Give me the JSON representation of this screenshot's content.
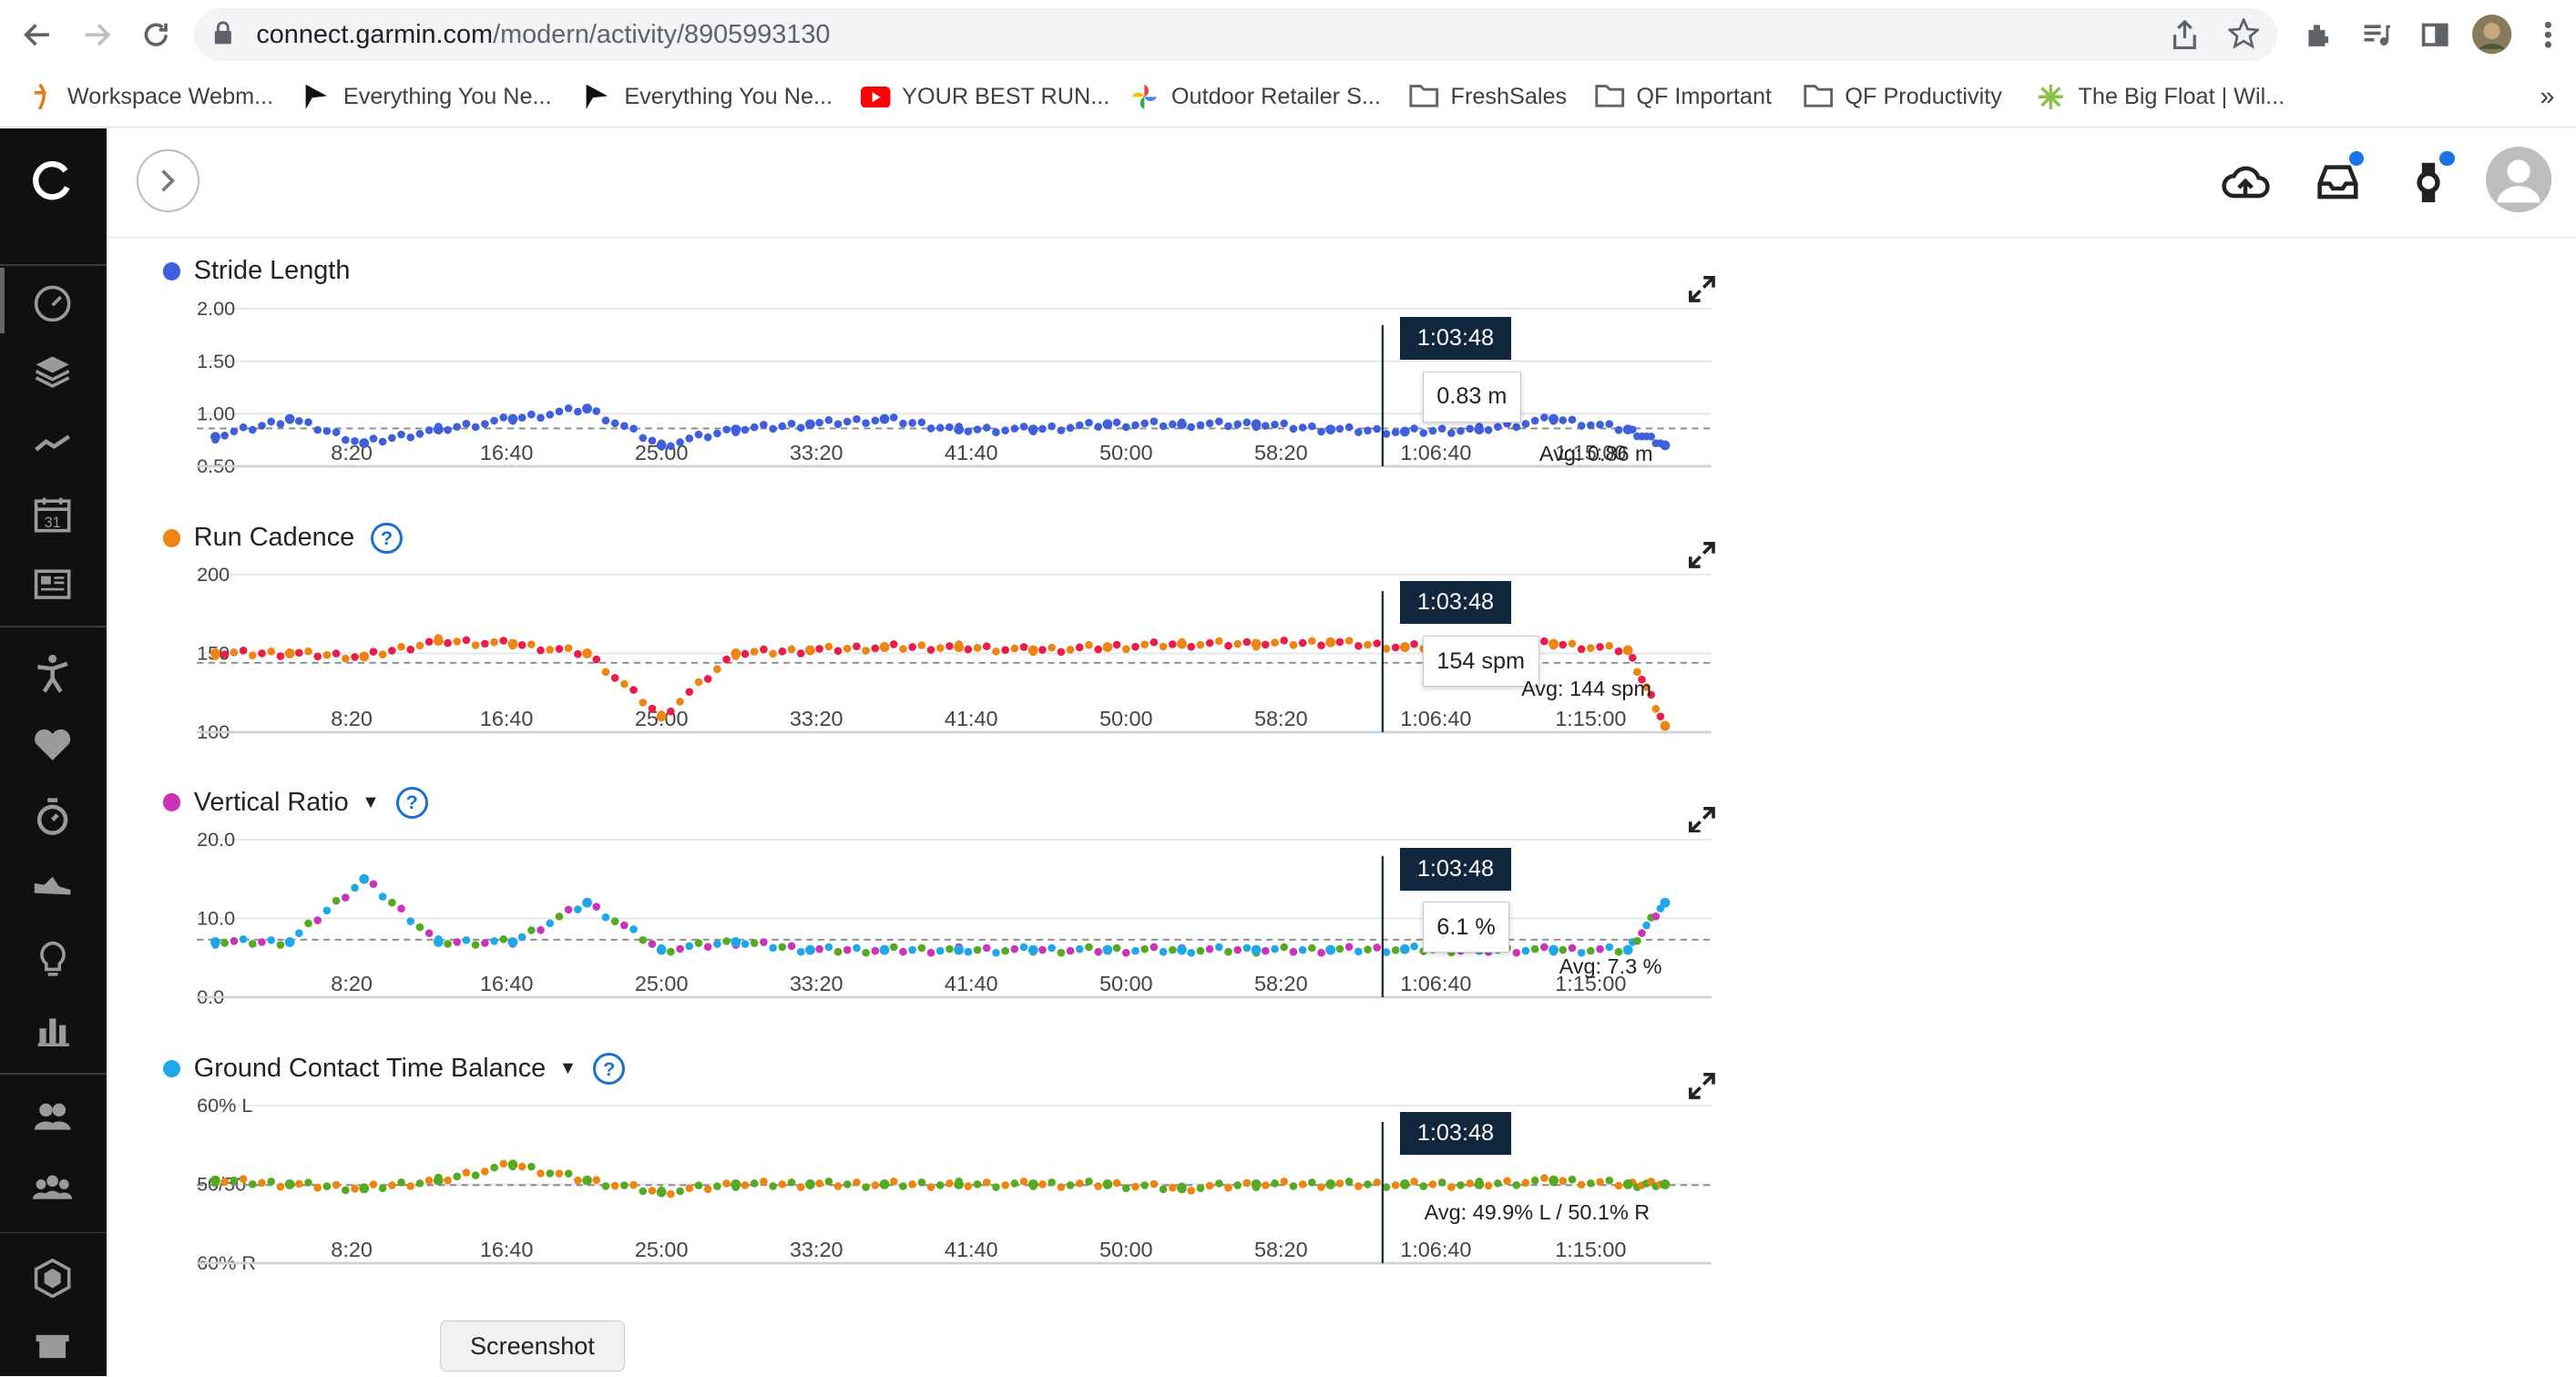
{
  "browser": {
    "url_host": "connect.garmin.com",
    "url_path": "/modern/activity/8905993130",
    "bookmarks": [
      {
        "label": "Workspace Webm...",
        "icon": "garmin-bookmark-icon",
        "color": "#e37d20"
      },
      {
        "label": "Everything You Ne...",
        "icon": "flag-bookmark-icon",
        "color": "#111111"
      },
      {
        "label": "Everything You Ne...",
        "icon": "flag-bookmark-icon",
        "color": "#111111"
      },
      {
        "label": "YOUR BEST RUN...",
        "icon": "youtube-icon",
        "color": "#ff0000"
      },
      {
        "label": "Outdoor Retailer S...",
        "icon": "pinwheel-icon",
        "color": "#4285f4"
      },
      {
        "label": "FreshSales",
        "icon": "folder-icon",
        "color": "#5f6368"
      },
      {
        "label": "QF Important",
        "icon": "folder-icon",
        "color": "#5f6368"
      },
      {
        "label": "QF Productivity",
        "icon": "folder-icon",
        "color": "#5f6368"
      },
      {
        "label": "The Big Float | Wil...",
        "icon": "flower-icon",
        "color": "#8bc34a"
      }
    ],
    "more_bookmarks": "»"
  },
  "leftnav": {
    "items": [
      "dashboard-icon",
      "layers-icon",
      "trend-icon",
      "calendar-icon",
      "news-icon",
      "activity-run-icon",
      "heart-icon",
      "stopwatch-icon",
      "shoe-icon",
      "lightbulb-icon",
      "bar-chart-icon",
      "group-icon",
      "community-icon",
      "hexagon-icon",
      "gift-icon"
    ],
    "calendar_day": "31"
  },
  "header": {
    "icons": [
      "upload-cloud-icon",
      "inbox-icon",
      "watch-icon",
      "user-avatar"
    ]
  },
  "charts": [
    {
      "title": "Stride Length",
      "dot_color": "#3f5fdc",
      "has_help": false,
      "has_dropdown": false,
      "y_ticks": [
        "2.00",
        "1.50",
        "1.00",
        "0.50"
      ],
      "x_ticks": [
        "8:20",
        "16:40",
        "25:00",
        "33:20",
        "41:40",
        "50:00",
        "58:20",
        "1:06:40",
        "1:15:00"
      ],
      "cursor_time": "1:03:48",
      "cursor_value": "0.83 m",
      "avg_label": "Avg: 0.86 m"
    },
    {
      "title": "Run Cadence",
      "dot_color": "#ee8511",
      "has_help": true,
      "has_dropdown": false,
      "y_ticks": [
        "200",
        "150",
        "100"
      ],
      "x_ticks": [
        "8:20",
        "16:40",
        "25:00",
        "33:20",
        "41:40",
        "50:00",
        "58:20",
        "1:06:40",
        "1:15:00"
      ],
      "cursor_time": "1:03:48",
      "cursor_value": "154 spm",
      "avg_label": "Avg: 144 spm"
    },
    {
      "title": "Vertical Ratio",
      "dot_color": "#cc33bb",
      "has_help": true,
      "has_dropdown": true,
      "y_ticks": [
        "20.0",
        "10.0",
        "0.0"
      ],
      "x_ticks": [
        "8:20",
        "16:40",
        "25:00",
        "33:20",
        "41:40",
        "50:00",
        "58:20",
        "1:06:40",
        "1:15:00"
      ],
      "cursor_time": "1:03:48",
      "cursor_value": "6.1 %",
      "avg_label": "Avg: 7.3 %"
    },
    {
      "title": "Ground Contact Time Balance",
      "dot_color": "#1ea8e8",
      "has_help": true,
      "has_dropdown": true,
      "y_ticks": [
        "60% L",
        "50/50",
        "60% R"
      ],
      "x_ticks": [
        "8:20",
        "16:40",
        "25:00",
        "33:20",
        "41:40",
        "50:00",
        "58:20",
        "1:06:40",
        "1:15:00"
      ],
      "cursor_time": "1:03:48",
      "cursor_value": "",
      "avg_label": "Avg: 49.9% L / 50.1% R"
    }
  ],
  "chart_data": [
    {
      "type": "scatter",
      "title": "Stride Length",
      "xlabel": "",
      "ylabel": "",
      "ylim": [
        0.5,
        2.0
      ],
      "x_ticks": [
        "8:20",
        "16:40",
        "25:00",
        "33:20",
        "41:40",
        "50:00",
        "58:20",
        "1:06:40",
        "1:15:00"
      ],
      "series": [
        {
          "name": "Stride Length",
          "color": "#3f5fdc",
          "x_minutes": [
            1,
            5,
            9,
            13,
            17,
            21,
            25,
            29,
            33,
            37,
            41,
            45,
            49,
            53,
            57,
            61,
            65,
            69,
            73,
            77,
            79
          ],
          "values": [
            0.78,
            0.95,
            0.72,
            0.85,
            0.95,
            1.05,
            0.7,
            0.85,
            0.9,
            0.95,
            0.85,
            0.85,
            0.9,
            0.9,
            0.9,
            0.85,
            0.83,
            0.85,
            0.95,
            0.85,
            0.7
          ]
        }
      ],
      "average": 0.86,
      "cursor": {
        "time": "1:03:48",
        "value": 0.83
      }
    },
    {
      "type": "scatter",
      "title": "Run Cadence",
      "xlabel": "",
      "ylabel": "",
      "ylim": [
        100,
        200
      ],
      "x_ticks": [
        "8:20",
        "16:40",
        "25:00",
        "33:20",
        "41:40",
        "50:00",
        "58:20",
        "1:06:40",
        "1:15:00"
      ],
      "series": [
        {
          "name": "Run Cadence",
          "color": "#ee8511",
          "x_minutes": [
            1,
            5,
            9,
            13,
            17,
            21,
            25,
            29,
            33,
            37,
            41,
            45,
            49,
            53,
            57,
            61,
            65,
            69,
            73,
            77,
            79
          ],
          "values": [
            150,
            150,
            148,
            158,
            156,
            150,
            110,
            150,
            152,
            154,
            154,
            152,
            154,
            156,
            156,
            157,
            154,
            155,
            156,
            152,
            104
          ]
        }
      ],
      "average": 144,
      "cursor": {
        "time": "1:03:48",
        "value": 154
      }
    },
    {
      "type": "scatter",
      "title": "Vertical Ratio",
      "xlabel": "",
      "ylabel": "",
      "ylim": [
        0,
        20
      ],
      "x_ticks": [
        "8:20",
        "16:40",
        "25:00",
        "33:20",
        "41:40",
        "50:00",
        "58:20",
        "1:06:40",
        "1:15:00"
      ],
      "series": [
        {
          "name": "Vertical Ratio",
          "color": "#1ea8e8",
          "x_minutes": [
            1,
            5,
            9,
            13,
            17,
            21,
            25,
            29,
            33,
            37,
            41,
            45,
            49,
            53,
            57,
            61,
            65,
            69,
            73,
            77,
            79
          ],
          "values": [
            7,
            7,
            15,
            7,
            7,
            12,
            6,
            7,
            6,
            6,
            6,
            6,
            6,
            6,
            6,
            6,
            6.1,
            6,
            6,
            6,
            12
          ]
        }
      ],
      "average": 7.3,
      "cursor": {
        "time": "1:03:48",
        "value": 6.1
      }
    },
    {
      "type": "scatter",
      "title": "Ground Contact Time Balance",
      "xlabel": "",
      "ylabel": "",
      "ylim": [
        -10,
        10
      ],
      "x_ticks": [
        "8:20",
        "16:40",
        "25:00",
        "33:20",
        "41:40",
        "50:00",
        "58:20",
        "1:06:40",
        "1:15:00"
      ],
      "series": [
        {
          "name": "Ground Contact Time Balance",
          "color": "#55aa22",
          "x_minutes": [
            1,
            5,
            9,
            13,
            17,
            21,
            25,
            29,
            33,
            37,
            41,
            45,
            49,
            53,
            57,
            61,
            65,
            69,
            73,
            77,
            79
          ],
          "values": [
            0.5,
            0,
            -0.5,
            0.5,
            2.5,
            0.5,
            -1,
            0,
            0,
            0,
            0,
            0,
            0,
            -0.5,
            0,
            0,
            0,
            0,
            0.5,
            0,
            0
          ]
        }
      ],
      "average_left_percent": 49.9,
      "average_right_percent": 50.1,
      "cursor": {
        "time": "1:03:48"
      }
    }
  ],
  "screenshot_button": "Screenshot"
}
